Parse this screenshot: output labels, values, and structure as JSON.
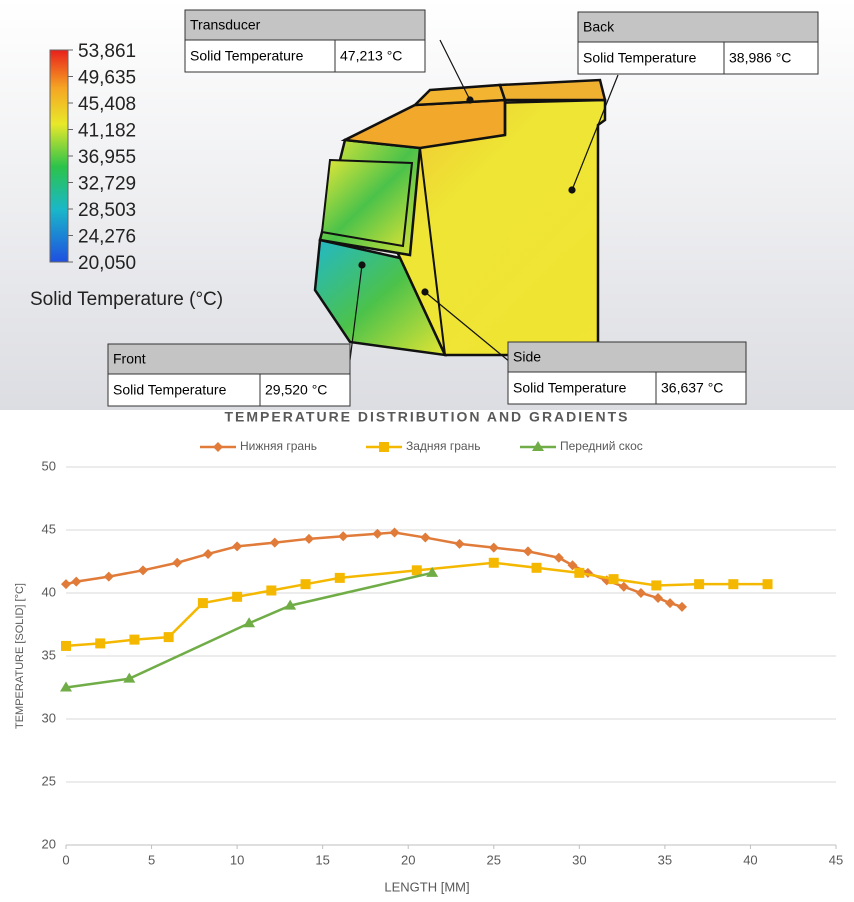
{
  "color_scale": {
    "title": "Solid Temperature (°C)",
    "lim": [
      20.05,
      53.861
    ],
    "ticks": [
      {
        "value": 53.861,
        "label": "53,861"
      },
      {
        "value": 49.635,
        "label": "49,635"
      },
      {
        "value": 45.408,
        "label": "45,408"
      },
      {
        "value": 41.182,
        "label": "41,182"
      },
      {
        "value": 36.955,
        "label": "36,955"
      },
      {
        "value": 32.729,
        "label": "32,729"
      },
      {
        "value": 28.503,
        "label": "28,503"
      },
      {
        "value": 24.276,
        "label": "24,276"
      },
      {
        "value": 20.05,
        "label": "20,050"
      }
    ]
  },
  "callouts": [
    {
      "title": "Transducer",
      "field": "Solid Temperature",
      "value": "47,213 °C"
    },
    {
      "title": "Back",
      "field": "Solid Temperature",
      "value": "38,986 °C"
    },
    {
      "title": "Front",
      "field": "Solid Temperature",
      "value": "29,520 °C"
    },
    {
      "title": "Side",
      "field": "Solid Temperature",
      "value": "36,637 °C"
    }
  ],
  "chart_data": {
    "type": "line",
    "title": "TEMPERATURE DISTRIBUTION AND GRADIENTS",
    "x_label": "LENGTH [MM]",
    "y_label": "TEMPERATURE [SOLID] [°C]",
    "xlim": [
      0,
      45
    ],
    "xticks": [
      0,
      5,
      10,
      15,
      20,
      25,
      30,
      35,
      40,
      45
    ],
    "ylim": [
      20,
      50
    ],
    "yticks": [
      20,
      25,
      30,
      35,
      40,
      45,
      50
    ],
    "grid": true,
    "legend": "top",
    "series": [
      {
        "name": "Нижняя грань",
        "color": "#e07b39",
        "x": [
          0,
          0.6,
          2.5,
          4.5,
          6.5,
          8.3,
          10,
          12.2,
          14.2,
          16.2,
          18.2,
          19.2,
          21,
          23,
          25,
          27,
          28.8,
          29.6,
          30.5,
          31.6,
          32.6,
          33.6,
          34.6,
          35.3,
          36
        ],
        "values": [
          40.7,
          40.9,
          41.3,
          41.8,
          42.4,
          43.1,
          43.7,
          44.0,
          44.3,
          44.5,
          44.7,
          44.8,
          44.4,
          43.9,
          43.6,
          43.3,
          42.8,
          42.2,
          41.6,
          41.0,
          40.5,
          40.0,
          39.6,
          39.2,
          38.9
        ]
      },
      {
        "name": "Задняя грань",
        "color": "#f5b800",
        "x": [
          0,
          2,
          4,
          6,
          8,
          10,
          12,
          14,
          16,
          20.5,
          25,
          27.5,
          30,
          32,
          34.5,
          37,
          39,
          41
        ],
        "values": [
          35.8,
          36.0,
          36.3,
          36.5,
          39.2,
          39.7,
          40.2,
          40.7,
          41.2,
          41.8,
          42.4,
          42.0,
          41.6,
          41.1,
          40.6,
          40.7,
          40.7,
          40.7
        ]
      },
      {
        "name": "Передний скос",
        "color": "#70ad47",
        "x": [
          0,
          3.7,
          10.7,
          13.1,
          21.4
        ],
        "values": [
          32.5,
          33.2,
          37.6,
          39.0,
          41.6
        ]
      }
    ]
  }
}
